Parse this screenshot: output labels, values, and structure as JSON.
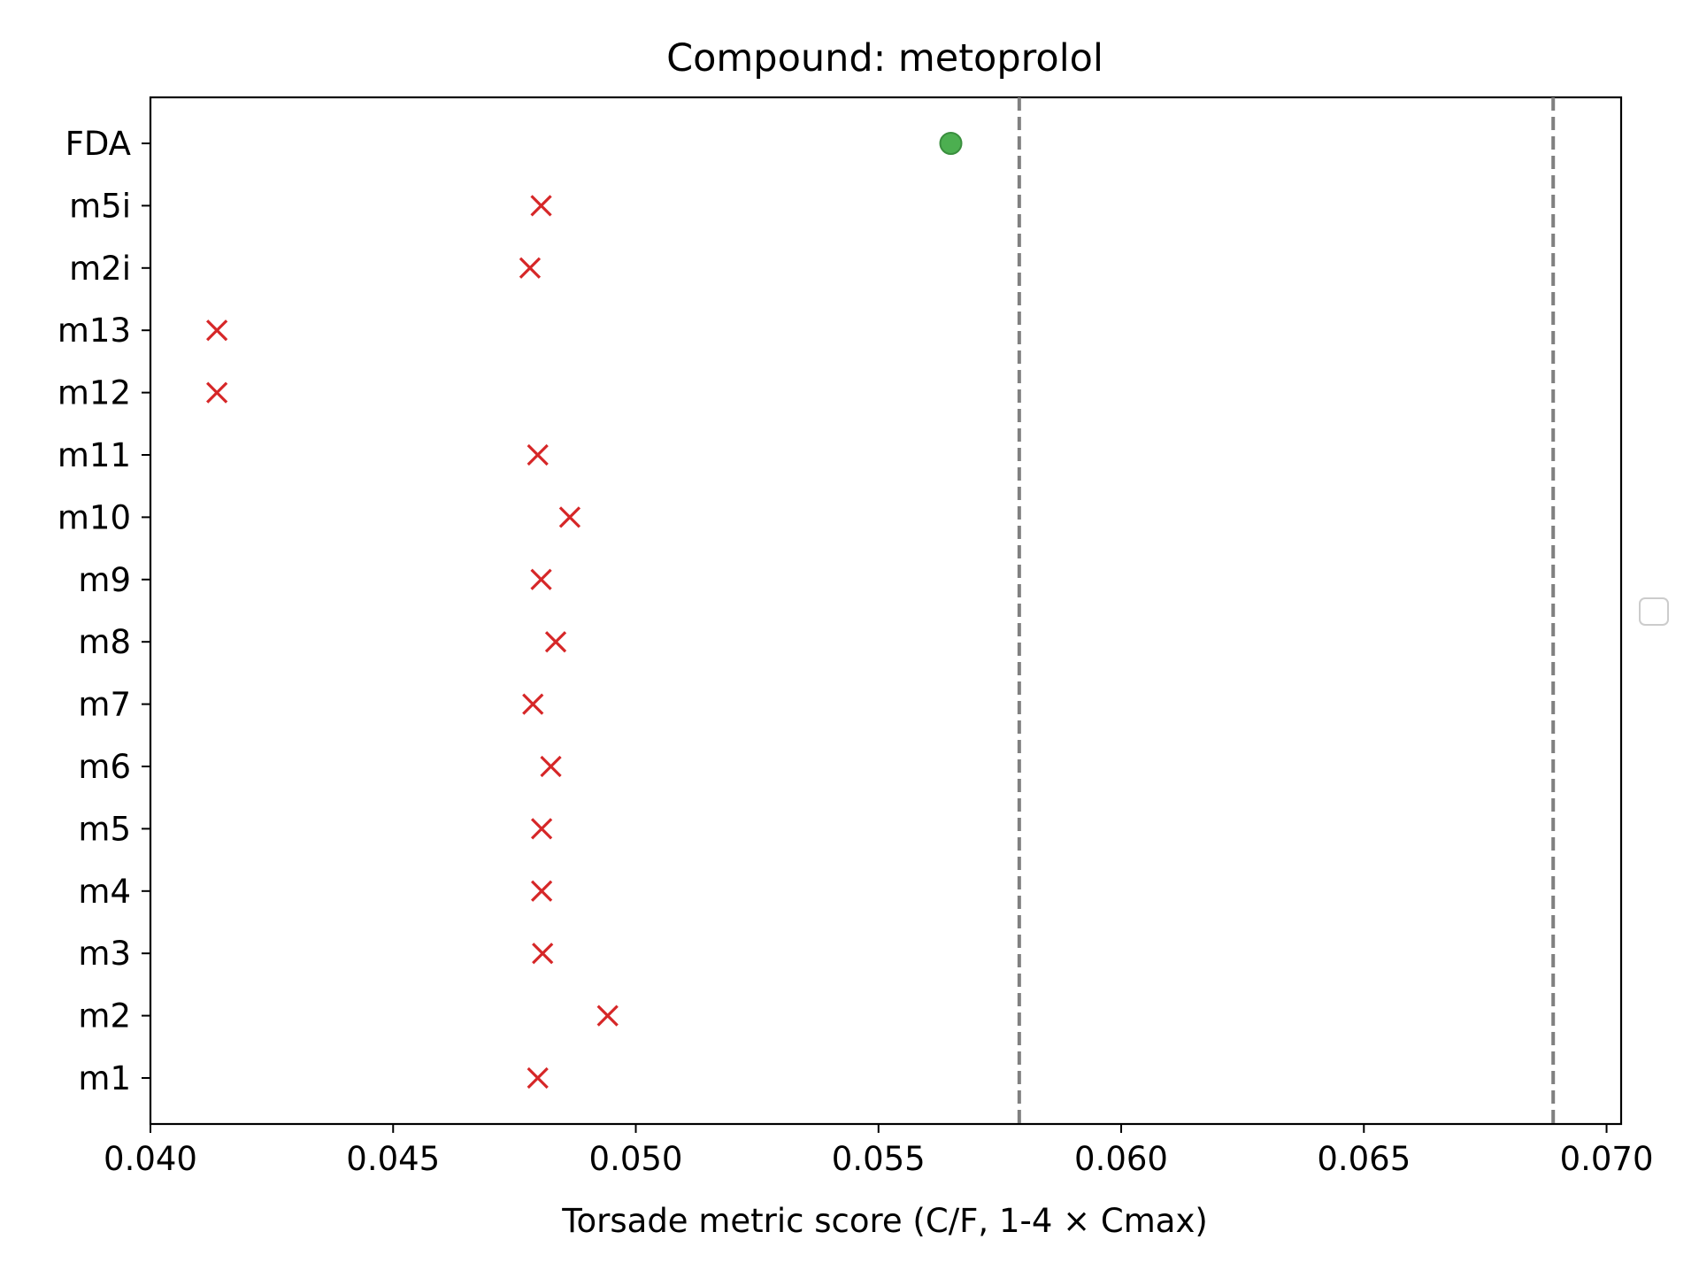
{
  "chart_data": {
    "type": "scatter",
    "title": "Compound: metoprolol",
    "xlabel": "Torsade metric score (C/F, 1-4 × Cmax)",
    "ylabel": "",
    "xlim": [
      0.04,
      0.0703
    ],
    "xticks": [
      0.04,
      0.045,
      0.05,
      0.055,
      0.06,
      0.065,
      0.07
    ],
    "xtick_labels": [
      "0.040",
      "0.045",
      "0.050",
      "0.055",
      "0.060",
      "0.065",
      "0.070"
    ],
    "categories": [
      "FDA",
      "m5i",
      "m2i",
      "m13",
      "m12",
      "m11",
      "m10",
      "m9",
      "m8",
      "m7",
      "m6",
      "m5",
      "m4",
      "m3",
      "m2",
      "m1"
    ],
    "grid": false,
    "legend": "empty, center-right outside axes",
    "series": [
      {
        "marker": "x",
        "color": "#d62728",
        "points": [
          {
            "y": "m5i",
            "x": 0.04805
          },
          {
            "y": "m2i",
            "x": 0.04782
          },
          {
            "y": "m13",
            "x": 0.04137
          },
          {
            "y": "m12",
            "x": 0.04137
          },
          {
            "y": "m11",
            "x": 0.04798
          },
          {
            "y": "m10",
            "x": 0.04864
          },
          {
            "y": "m9",
            "x": 0.04805
          },
          {
            "y": "m8",
            "x": 0.04835
          },
          {
            "y": "m7",
            "x": 0.04788
          },
          {
            "y": "m6",
            "x": 0.04825
          },
          {
            "y": "m5",
            "x": 0.04806
          },
          {
            "y": "m4",
            "x": 0.04806
          },
          {
            "y": "m3",
            "x": 0.04808
          },
          {
            "y": "m2",
            "x": 0.04942
          },
          {
            "y": "m1",
            "x": 0.04798
          }
        ]
      },
      {
        "marker": "o",
        "color": "#4caf50",
        "points": [
          {
            "y": "FDA",
            "x": 0.05649
          }
        ]
      }
    ],
    "reference_lines": [
      {
        "x": 0.0579,
        "style": "dashed",
        "color": "#808080"
      },
      {
        "x": 0.0689,
        "style": "dashed",
        "color": "#808080"
      }
    ]
  }
}
